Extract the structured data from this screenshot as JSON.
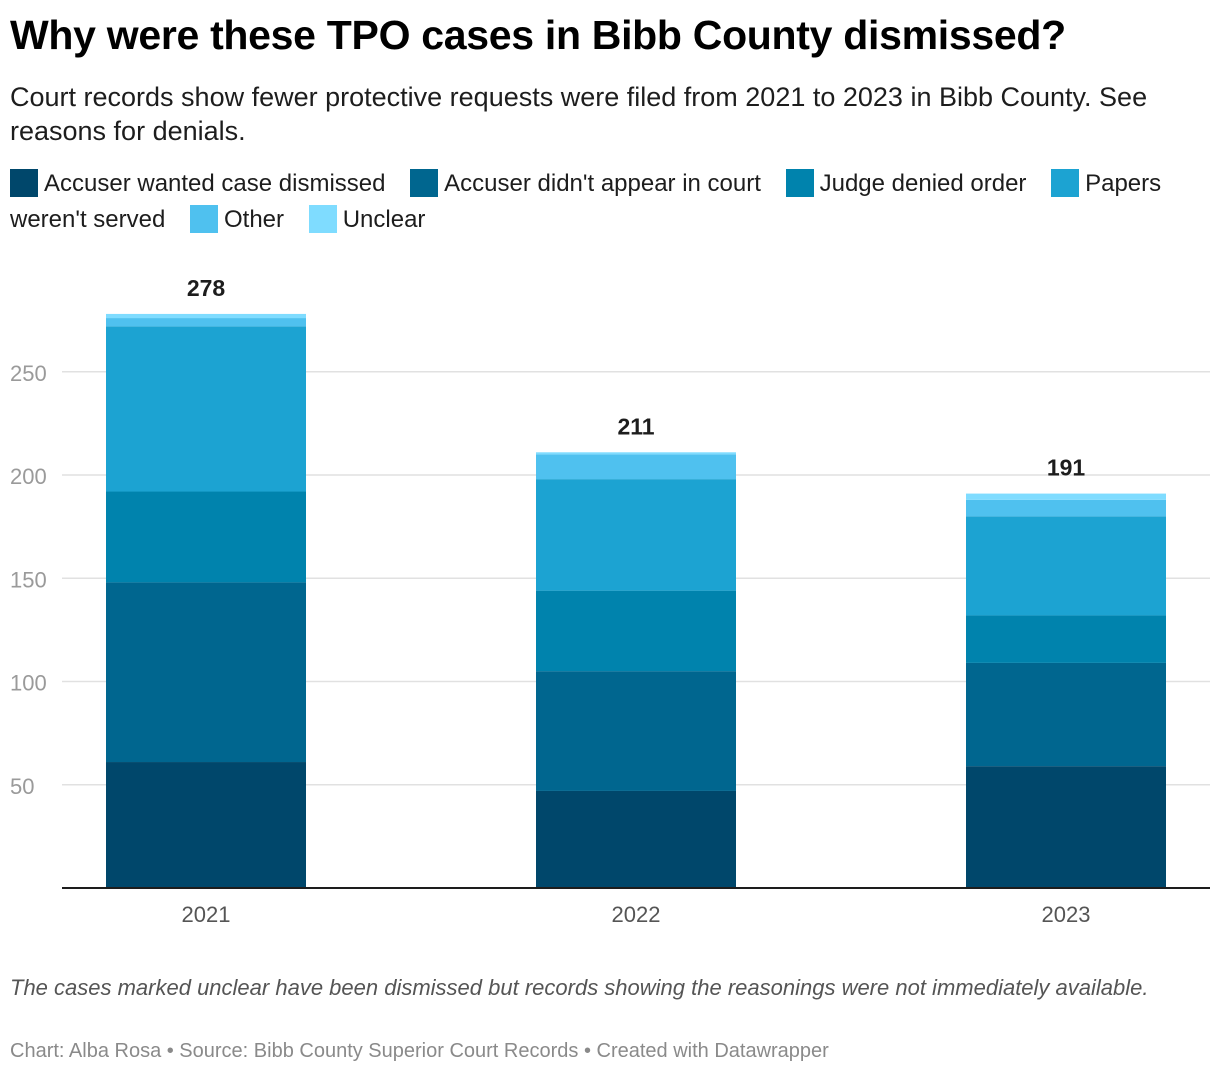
{
  "title": "Why were these TPO cases in Bibb County dismissed?",
  "subtitle": "Court records show fewer protective requests were filed from 2021 to 2023 in Bibb County. See reasons for denials.",
  "footnote": "The cases marked unclear have been dismissed but records showing the reasonings were not immediately available.",
  "credit": "Chart: Alba Rosa • Source: Bibb County Superior Court Records • Created with Datawrapper",
  "chart_data": {
    "type": "bar",
    "stacked": true,
    "categories": [
      "2021",
      "2022",
      "2023"
    ],
    "totals": [
      "278",
      "211",
      "191"
    ],
    "y_ticks": [
      50,
      100,
      150,
      200,
      250
    ],
    "ylim": [
      0,
      290
    ],
    "grid": true,
    "legend_position": "top",
    "series": [
      {
        "name": "Accuser wanted case dismissed",
        "color": "#00476b",
        "values": [
          61,
          47,
          59
        ]
      },
      {
        "name": "Accuser didn't appear in court",
        "color": "#00668f",
        "values": [
          87,
          58,
          50
        ]
      },
      {
        "name": "Judge denied order",
        "color": "#0083ad",
        "values": [
          44,
          39,
          23
        ]
      },
      {
        "name": "Papers weren't served",
        "color": "#1ca3d2",
        "values": [
          80,
          54,
          48
        ]
      },
      {
        "name": "Other",
        "color": "#4fc1ef",
        "values": [
          4,
          12,
          8
        ]
      },
      {
        "name": "Unclear",
        "color": "#7fdcff",
        "values": [
          2,
          1,
          3
        ]
      }
    ]
  }
}
